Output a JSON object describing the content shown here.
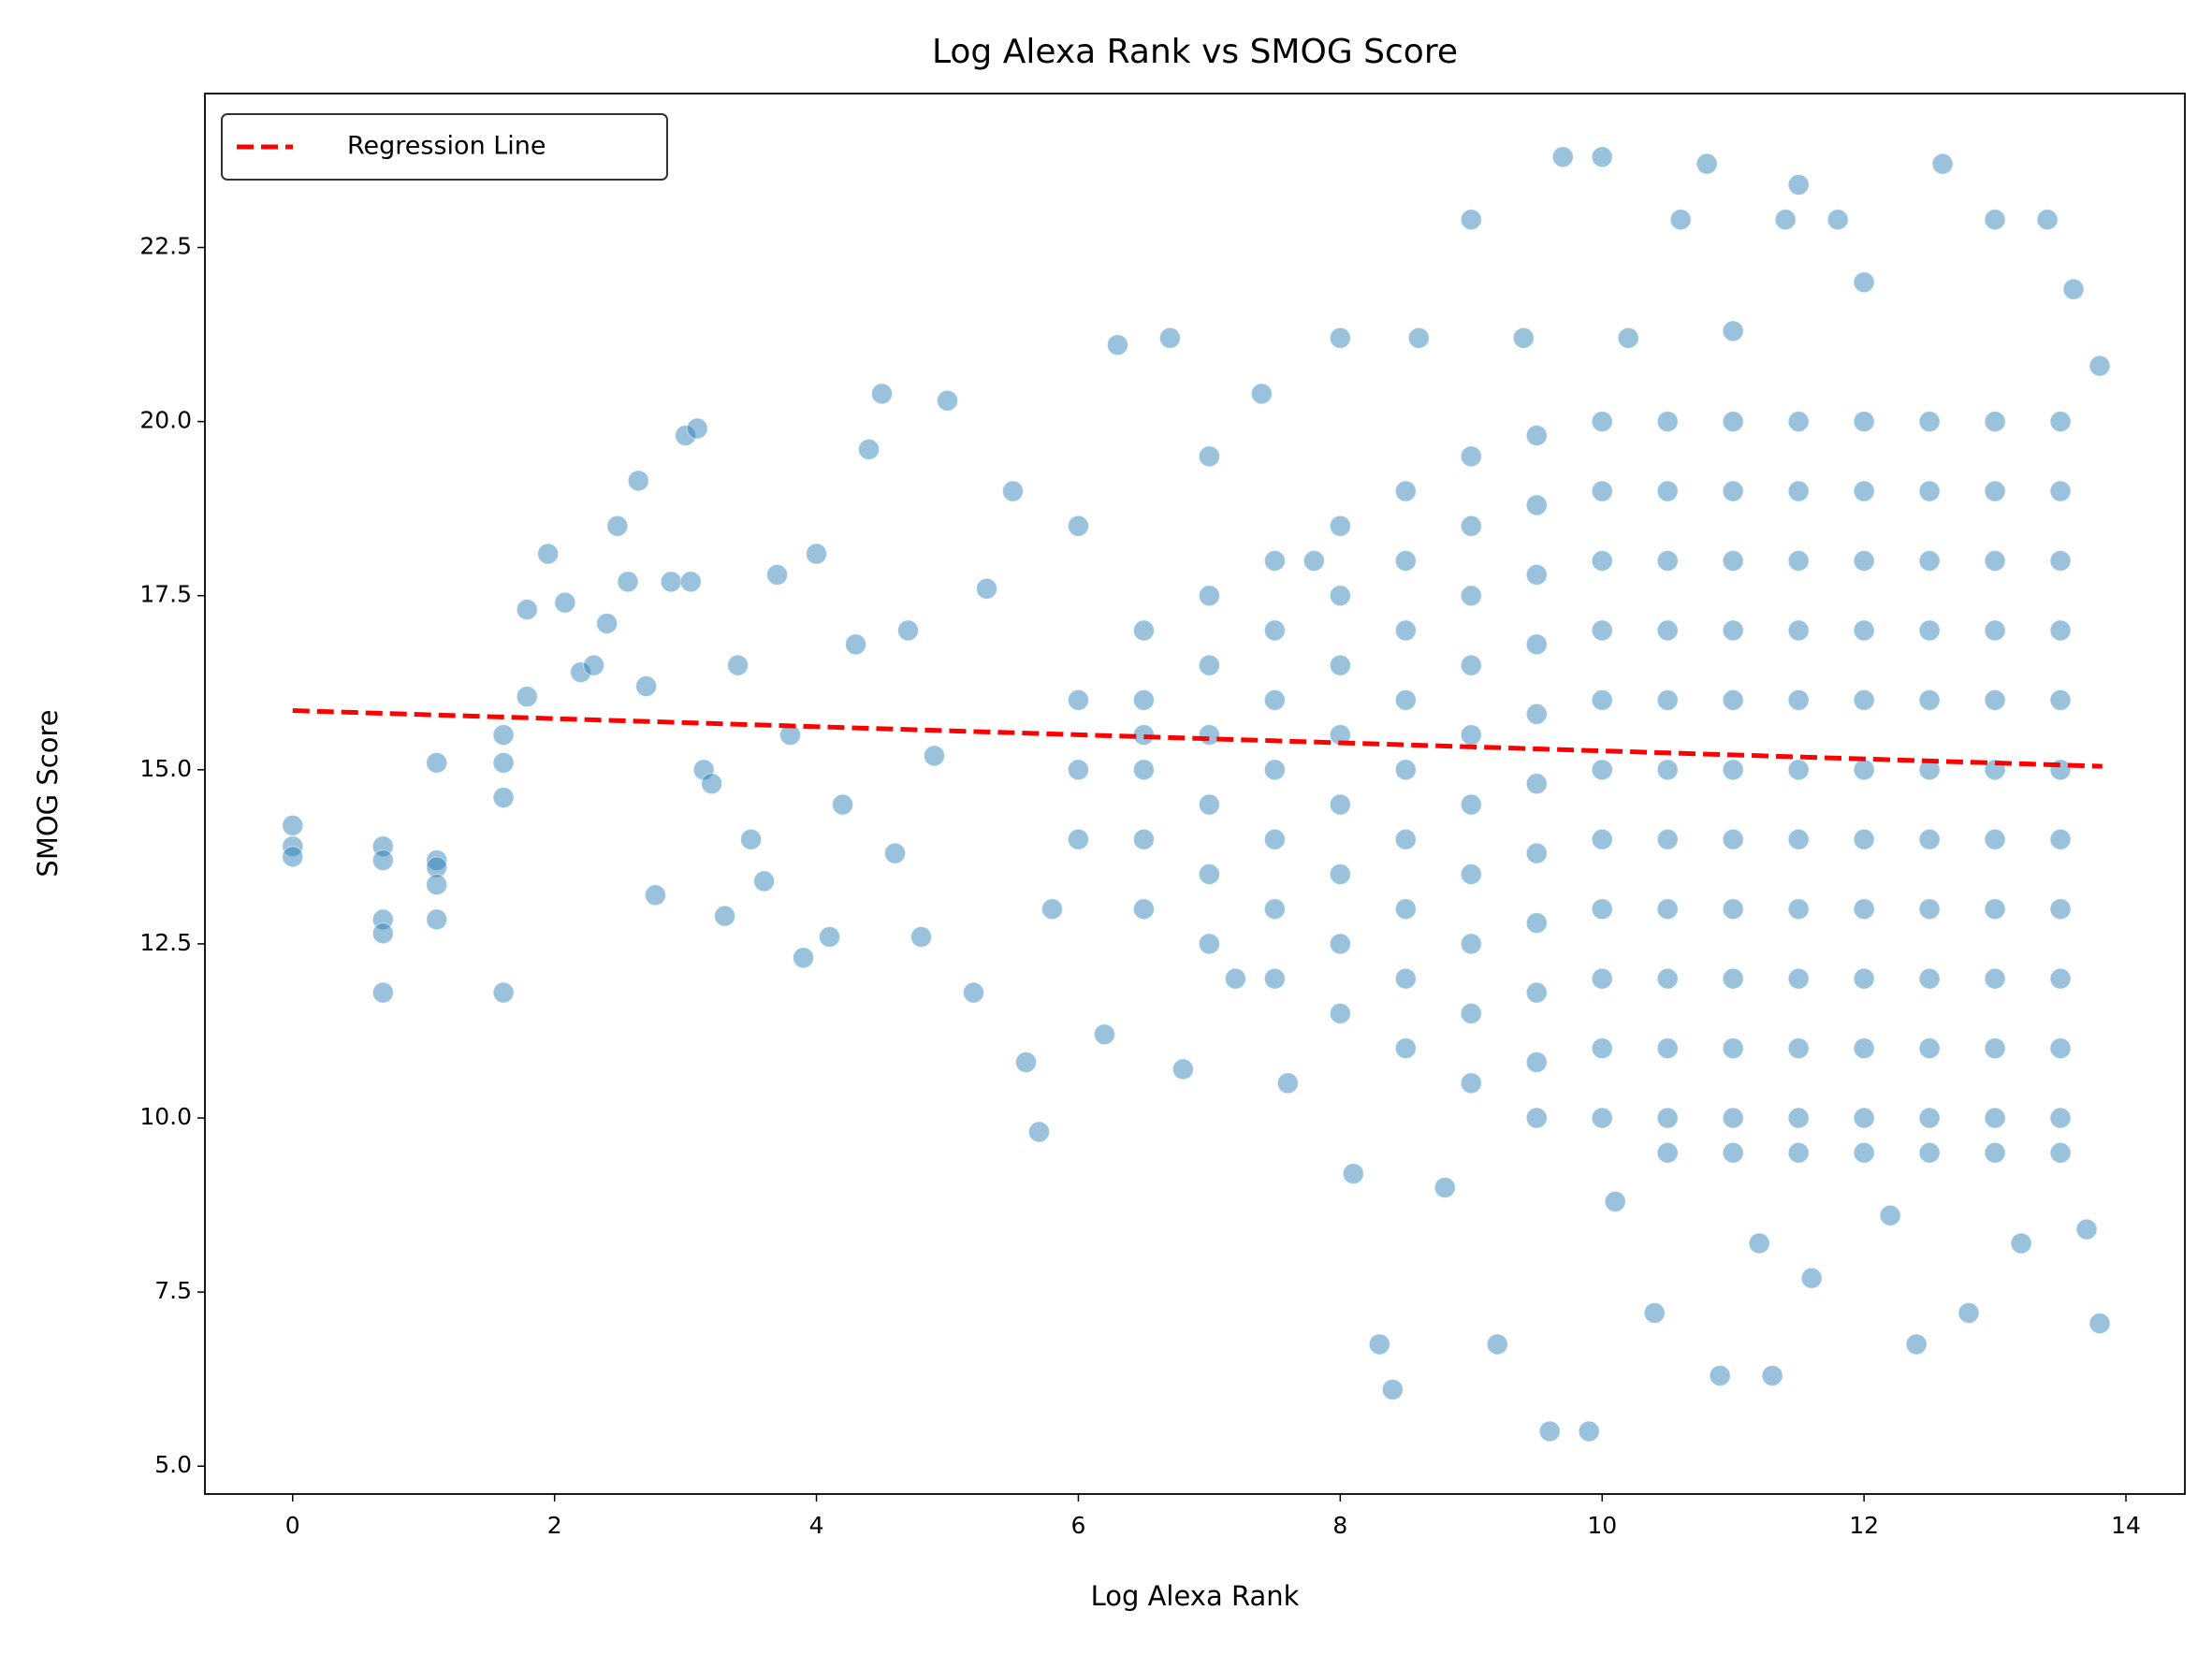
{
  "chart_data": {
    "type": "scatter",
    "title": "Log Alexa Rank vs SMOG Score",
    "xlabel": "Log Alexa Rank",
    "ylabel": "SMOG Score",
    "xlim": [
      -0.67,
      14.45
    ],
    "ylim": [
      4.6,
      24.71
    ],
    "xticks": [
      0,
      2,
      4,
      6,
      8,
      10,
      12,
      14
    ],
    "yticks": [
      {
        "value": 5,
        "label": "5.0"
      },
      7.5,
      {
        "value": 10,
        "label": "10.0"
      },
      12.5,
      {
        "value": 15,
        "label": "15.0"
      },
      17.5,
      {
        "value": 20,
        "label": "20.0"
      },
      22.5
    ],
    "legend": "upper left",
    "series": [
      {
        "kind": "points",
        "color": "#1f77b4",
        "x": [
          0,
          0,
          0,
          0.69,
          0.69,
          0.69,
          0.69,
          0.69,
          1.1,
          1.1,
          1.1,
          1.1,
          1.1,
          1.61,
          1.61,
          1.61,
          1.61,
          1.79,
          1.79,
          1.95,
          2.08,
          2.2,
          2.3,
          2.4,
          2.48,
          2.56,
          2.64,
          2.7,
          2.77,
          2.89,
          3.0,
          3.04,
          3.09,
          3.14,
          3.2,
          3.3,
          3.4,
          3.5,
          3.6,
          3.7,
          3.8,
          3.9,
          4.0,
          4.1,
          4.2,
          4.3,
          4.4,
          4.5,
          4.6,
          4.7,
          4.8,
          4.9,
          5.0,
          5.2,
          5.3,
          5.5,
          5.6,
          5.7,
          5.8,
          6.0,
          6.2,
          6.3,
          6.5,
          6.7,
          6.8,
          7.0,
          7.2,
          7.4,
          7.6,
          7.8,
          8.0,
          8.1,
          8.3,
          8.4,
          8.6,
          8.8,
          9.0,
          9.2,
          9.4,
          9.6,
          9.7,
          9.9,
          10.0,
          10.1,
          10.2,
          10.4,
          10.6,
          10.8,
          10.9,
          11.0,
          11.2,
          11.3,
          11.4,
          11.5,
          11.6,
          11.8,
          12.0,
          12.2,
          12.4,
          12.6,
          12.8,
          13.0,
          13.2,
          13.4,
          13.6,
          13.7,
          13.8,
          13.8,
          6,
          6,
          6,
          6.5,
          6.5,
          6.5,
          6.5,
          6.5,
          7,
          7,
          7,
          7,
          7,
          7,
          7.5,
          7.5,
          7.5,
          7.5,
          7.5,
          7.5,
          7.5,
          8,
          8,
          8,
          8,
          8,
          8,
          8,
          8,
          8.5,
          8.5,
          8.5,
          8.5,
          8.5,
          8.5,
          8.5,
          8.5,
          8.5,
          9,
          9,
          9,
          9,
          9,
          9,
          9,
          9,
          9,
          9,
          9.5,
          9.5,
          9.5,
          9.5,
          9.5,
          9.5,
          9.5,
          9.5,
          9.5,
          9.5,
          9.5,
          10,
          10,
          10,
          10,
          10,
          10,
          10,
          10,
          10,
          10,
          10,
          10.5,
          10.5,
          10.5,
          10.5,
          10.5,
          10.5,
          10.5,
          10.5,
          10.5,
          10.5,
          10.5,
          10.5,
          11,
          11,
          11,
          11,
          11,
          11,
          11,
          11,
          11,
          11,
          11,
          11,
          11.5,
          11.5,
          11.5,
          11.5,
          11.5,
          11.5,
          11.5,
          11.5,
          11.5,
          11.5,
          11.5,
          11.5,
          12,
          12,
          12,
          12,
          12,
          12,
          12,
          12,
          12,
          12,
          12,
          12,
          12.5,
          12.5,
          12.5,
          12.5,
          12.5,
          12.5,
          12.5,
          12.5,
          12.5,
          12.5,
          12.5,
          12.5,
          13,
          13,
          13,
          13,
          13,
          13,
          13,
          13,
          13,
          13,
          13,
          13,
          13.5,
          13.5,
          13.5,
          13.5,
          13.5,
          13.5,
          13.5,
          13.5,
          13.5,
          13.5,
          13.5,
          13.5
        ],
        "values": [
          14.2,
          13.9,
          13.75,
          13.9,
          13.7,
          12.85,
          12.65,
          11.8,
          13.7,
          13.6,
          13.35,
          12.85,
          15.1,
          15.5,
          15.1,
          14.6,
          11.8,
          17.3,
          16.05,
          18.1,
          17.4,
          16.4,
          16.5,
          17.1,
          18.5,
          17.7,
          19.15,
          16.2,
          13.2,
          17.7,
          19.8,
          17.7,
          19.9,
          15.0,
          14.8,
          12.9,
          16.5,
          14.0,
          13.4,
          17.8,
          15.5,
          12.3,
          18.1,
          12.6,
          14.5,
          16.8,
          19.6,
          20.4,
          13.8,
          17.0,
          12.6,
          15.2,
          20.3,
          11.8,
          17.6,
          19.0,
          10.8,
          9.8,
          13.0,
          18.5,
          11.2,
          21.1,
          15.5,
          21.2,
          10.7,
          19.5,
          12.0,
          20.4,
          10.5,
          18.0,
          21.2,
          9.2,
          6.75,
          6.1,
          21.2,
          9.0,
          22.9,
          6.75,
          21.2,
          5.5,
          23.8,
          5.5,
          23.8,
          8.8,
          21.2,
          7.2,
          22.9,
          23.7,
          6.3,
          21.3,
          8.2,
          6.3,
          22.9,
          23.4,
          7.7,
          22.9,
          22.0,
          8.6,
          6.75,
          23.7,
          7.2,
          22.9,
          8.2,
          22.9,
          21.9,
          8.4,
          7.05,
          20.8,
          16,
          15,
          14,
          17,
          16,
          15,
          14,
          13,
          17.5,
          16.5,
          15.5,
          14.5,
          13.5,
          12.5,
          18,
          17,
          16,
          15,
          14,
          13,
          12,
          18.5,
          17.5,
          16.5,
          15.5,
          14.5,
          13.5,
          12.5,
          11.5,
          19,
          18,
          17,
          16,
          15,
          14,
          13,
          12,
          11,
          19.5,
          18.5,
          17.5,
          16.5,
          15.5,
          14.5,
          13.5,
          12.5,
          11.5,
          10.5,
          19.8,
          18.8,
          17.8,
          16.8,
          15.8,
          14.8,
          13.8,
          12.8,
          11.8,
          10.8,
          10.0,
          20,
          19,
          18,
          17,
          16,
          15,
          14,
          13,
          12,
          11,
          10,
          20,
          19,
          18,
          17,
          16,
          15,
          14,
          13,
          12,
          11,
          10,
          9.5,
          20,
          19,
          18,
          17,
          16,
          15,
          14,
          13,
          12,
          11,
          10,
          9.5,
          20,
          19,
          18,
          17,
          16,
          15,
          14,
          13,
          12,
          11,
          10,
          9.5,
          20,
          19,
          18,
          17,
          16,
          15,
          14,
          13,
          12,
          11,
          10,
          9.5,
          20,
          19,
          18,
          17,
          16,
          15,
          14,
          13,
          12,
          11,
          10,
          9.5,
          20,
          19,
          18,
          17,
          16,
          15,
          14,
          13,
          12,
          11,
          10,
          9.5,
          20,
          19,
          18,
          17,
          16,
          15,
          14,
          13,
          12,
          11,
          10,
          9.5
        ]
      },
      {
        "kind": "line",
        "name": "Regression Line",
        "color": "#ff0000",
        "dashed": true,
        "x": [
          0,
          13.82
        ],
        "values": [
          15.85,
          15.05
        ]
      }
    ]
  }
}
